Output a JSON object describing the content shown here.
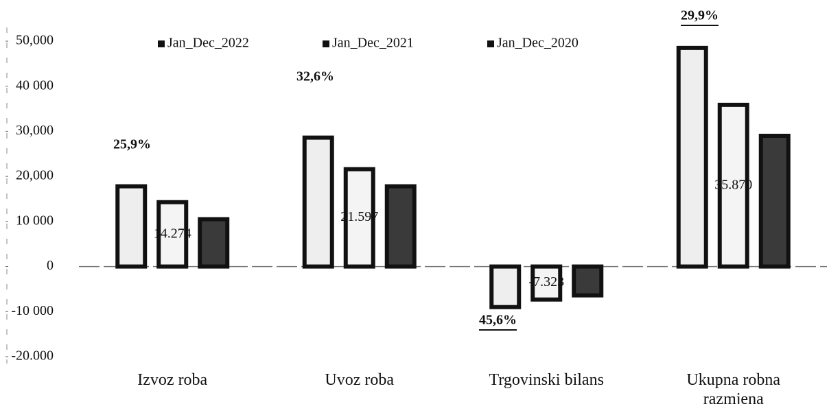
{
  "chart_data": {
    "type": "bar",
    "categories": [
      "Izvoz roba",
      "Uvoz roba",
      "Trgovinski bilans",
      "Ukupna robna razmjena"
    ],
    "series": [
      {
        "name": "Jan_Dec_2022",
        "color": "#eeeeee",
        "values": [
          17800,
          28600,
          -9000,
          48500
        ],
        "value_labels": [
          null,
          null,
          null,
          null
        ]
      },
      {
        "name": "Jan_Dec_2021",
        "color": "#f4f4f4",
        "values": [
          14274,
          21597,
          -7323,
          35870
        ],
        "value_labels": [
          "14.274",
          "21.597",
          "-7.323",
          "35.870"
        ]
      },
      {
        "name": "Jan_Dec_2020",
        "color": "#3a3a3a",
        "values": [
          10500,
          17800,
          -6400,
          29000
        ],
        "value_labels": [
          null,
          null,
          null,
          null
        ]
      }
    ],
    "annotations": [
      "25,9%",
      "32,6%",
      "45,6%",
      "29,9%"
    ],
    "ylim": [
      -20000,
      50000
    ],
    "yticks": [
      {
        "value": -20000,
        "label": "-20.000"
      },
      {
        "value": -10000,
        "label": "-10 000"
      },
      0,
      {
        "value": 10000,
        "label": "10 000"
      },
      {
        "value": 20000,
        "label": "20,000"
      },
      {
        "value": 30000,
        "label": "30,000"
      },
      {
        "value": 40000,
        "label": "40 000"
      },
      {
        "value": 50000,
        "label": "50,000"
      }
    ],
    "legend": "top"
  }
}
